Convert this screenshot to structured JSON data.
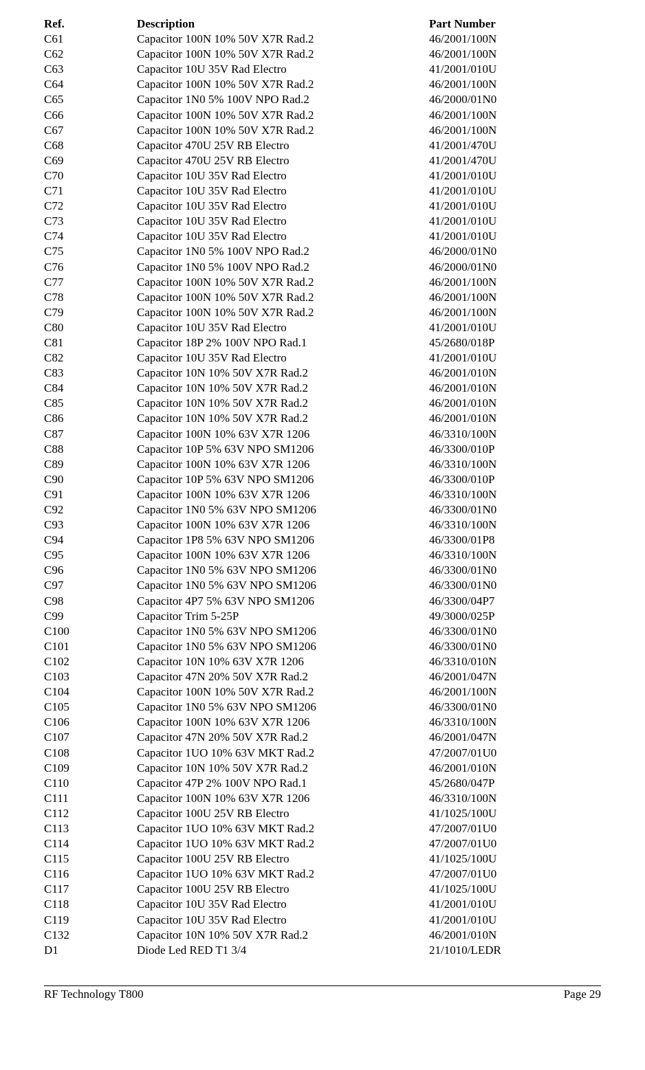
{
  "columns": {
    "ref": "Ref.",
    "desc": "Description",
    "part": "Part Number"
  },
  "rows": [
    {
      "ref": "C61",
      "desc": "Capacitor 100N 10% 50V X7R Rad.2",
      "part": "46/2001/100N"
    },
    {
      "ref": "C62",
      "desc": "Capacitor 100N 10% 50V X7R Rad.2",
      "part": "46/2001/100N"
    },
    {
      "ref": "C63",
      "desc": "Capacitor 10U 35V Rad Electro",
      "part": "41/2001/010U"
    },
    {
      "ref": "C64",
      "desc": "Capacitor 100N 10% 50V X7R Rad.2",
      "part": "46/2001/100N"
    },
    {
      "ref": "C65",
      "desc": "Capacitor 1N0 5% 100V NPO Rad.2",
      "part": "46/2000/01N0"
    },
    {
      "ref": "C66",
      "desc": "Capacitor 100N 10% 50V X7R Rad.2",
      "part": "46/2001/100N"
    },
    {
      "ref": "C67",
      "desc": "Capacitor 100N 10% 50V X7R Rad.2",
      "part": "46/2001/100N"
    },
    {
      "ref": "C68",
      "desc": "Capacitor 470U 25V RB Electro",
      "part": "41/2001/470U"
    },
    {
      "ref": "C69",
      "desc": "Capacitor 470U 25V RB Electro",
      "part": "41/2001/470U"
    },
    {
      "ref": "C70",
      "desc": "Capacitor 10U 35V Rad Electro",
      "part": "41/2001/010U"
    },
    {
      "ref": "C71",
      "desc": "Capacitor 10U 35V Rad Electro",
      "part": "41/2001/010U"
    },
    {
      "ref": "C72",
      "desc": "Capacitor 10U 35V Rad Electro",
      "part": "41/2001/010U"
    },
    {
      "ref": "C73",
      "desc": "Capacitor 10U 35V Rad Electro",
      "part": "41/2001/010U"
    },
    {
      "ref": "C74",
      "desc": "Capacitor 10U 35V Rad Electro",
      "part": "41/2001/010U"
    },
    {
      "ref": "C75",
      "desc": "Capacitor 1N0 5% 100V NPO Rad.2",
      "part": "46/2000/01N0"
    },
    {
      "ref": "C76",
      "desc": "Capacitor 1N0 5% 100V NPO Rad.2",
      "part": "46/2000/01N0"
    },
    {
      "ref": "C77",
      "desc": "Capacitor 100N 10% 50V X7R Rad.2",
      "part": "46/2001/100N"
    },
    {
      "ref": "C78",
      "desc": "Capacitor 100N 10% 50V X7R Rad.2",
      "part": "46/2001/100N"
    },
    {
      "ref": "C79",
      "desc": "Capacitor 100N 10% 50V X7R Rad.2",
      "part": "46/2001/100N"
    },
    {
      "ref": "C80",
      "desc": "Capacitor 10U 35V Rad Electro",
      "part": "41/2001/010U"
    },
    {
      "ref": "C81",
      "desc": "Capacitor 18P 2% 100V NPO Rad.1",
      "part": "45/2680/018P"
    },
    {
      "ref": "C82",
      "desc": "Capacitor 10U 35V Rad Electro",
      "part": "41/2001/010U"
    },
    {
      "ref": "C83",
      "desc": "Capacitor 10N 10% 50V X7R Rad.2",
      "part": "46/2001/010N"
    },
    {
      "ref": "C84",
      "desc": "Capacitor 10N 10% 50V X7R Rad.2",
      "part": "46/2001/010N"
    },
    {
      "ref": "C85",
      "desc": "Capacitor 10N 10% 50V X7R Rad.2",
      "part": "46/2001/010N"
    },
    {
      "ref": "C86",
      "desc": "Capacitor 10N 10% 50V X7R Rad.2",
      "part": "46/2001/010N"
    },
    {
      "ref": "C87",
      "desc": "Capacitor 100N 10% 63V X7R 1206",
      "part": "46/3310/100N"
    },
    {
      "ref": "C88",
      "desc": "Capacitor 10P 5% 63V NPO SM1206",
      "part": "46/3300/010P"
    },
    {
      "ref": "C89",
      "desc": "Capacitor 100N 10% 63V X7R 1206",
      "part": "46/3310/100N"
    },
    {
      "ref": "C90",
      "desc": "Capacitor 10P 5% 63V NPO SM1206",
      "part": "46/3300/010P"
    },
    {
      "ref": "C91",
      "desc": "Capacitor 100N 10% 63V X7R 1206",
      "part": "46/3310/100N"
    },
    {
      "ref": "C92",
      "desc": "Capacitor 1N0 5% 63V NPO SM1206",
      "part": "46/3300/01N0"
    },
    {
      "ref": "C93",
      "desc": "Capacitor 100N 10% 63V X7R 1206",
      "part": "46/3310/100N"
    },
    {
      "ref": "C94",
      "desc": "Capacitor 1P8 5% 63V NPO SM1206",
      "part": "46/3300/01P8"
    },
    {
      "ref": "C95",
      "desc": "Capacitor 100N 10% 63V X7R 1206",
      "part": "46/3310/100N"
    },
    {
      "ref": "C96",
      "desc": "Capacitor 1N0 5% 63V NPO SM1206",
      "part": "46/3300/01N0"
    },
    {
      "ref": "C97",
      "desc": "Capacitor 1N0 5% 63V NPO SM1206",
      "part": "46/3300/01N0"
    },
    {
      "ref": "C98",
      "desc": "Capacitor 4P7 5% 63V NPO SM1206",
      "part": "46/3300/04P7"
    },
    {
      "ref": "C99",
      "desc": "Capacitor Trim 5-25P",
      "part": "49/3000/025P"
    },
    {
      "ref": "C100",
      "desc": "Capacitor 1N0 5% 63V NPO SM1206",
      "part": "46/3300/01N0"
    },
    {
      "ref": "C101",
      "desc": "Capacitor 1N0 5% 63V NPO SM1206",
      "part": "46/3300/01N0"
    },
    {
      "ref": "C102",
      "desc": "Capacitor 10N 10% 63V X7R 1206",
      "part": "46/3310/010N"
    },
    {
      "ref": "C103",
      "desc": "Capacitor 47N 20% 50V X7R Rad.2",
      "part": "46/2001/047N"
    },
    {
      "ref": "C104",
      "desc": "Capacitor 100N 10% 50V X7R Rad.2",
      "part": "46/2001/100N"
    },
    {
      "ref": "C105",
      "desc": "Capacitor 1N0 5% 63V NPO SM1206",
      "part": "46/3300/01N0"
    },
    {
      "ref": "C106",
      "desc": "Capacitor 100N 10% 63V X7R 1206",
      "part": "46/3310/100N"
    },
    {
      "ref": "C107",
      "desc": "Capacitor 47N 20% 50V X7R Rad.2",
      "part": "46/2001/047N"
    },
    {
      "ref": "C108",
      "desc": "Capacitor 1UO 10% 63V MKT Rad.2",
      "part": "47/2007/01U0"
    },
    {
      "ref": "C109",
      "desc": "Capacitor 10N 10% 50V X7R Rad.2",
      "part": "46/2001/010N"
    },
    {
      "ref": "C110",
      "desc": "Capacitor 47P 2% 100V NPO Rad.1",
      "part": "45/2680/047P"
    },
    {
      "ref": "C111",
      "desc": "Capacitor 100N 10% 63V X7R 1206",
      "part": "46/3310/100N"
    },
    {
      "ref": "C112",
      "desc": "Capacitor 100U 25V RB Electro",
      "part": "41/1025/100U"
    },
    {
      "ref": "C113",
      "desc": "Capacitor 1UO 10% 63V MKT Rad.2",
      "part": "47/2007/01U0"
    },
    {
      "ref": "C114",
      "desc": "Capacitor 1UO 10% 63V MKT Rad.2",
      "part": "47/2007/01U0"
    },
    {
      "ref": "C115",
      "desc": "Capacitor 100U 25V RB Electro",
      "part": "41/1025/100U"
    },
    {
      "ref": "C116",
      "desc": "Capacitor 1UO 10% 63V MKT Rad.2",
      "part": "47/2007/01U0"
    },
    {
      "ref": "C117",
      "desc": "Capacitor 100U 25V RB Electro",
      "part": "41/1025/100U"
    },
    {
      "ref": "C118",
      "desc": "Capacitor 10U 35V Rad Electro",
      "part": "41/2001/010U"
    },
    {
      "ref": "C119",
      "desc": "Capacitor 10U 35V Rad Electro",
      "part": "41/2001/010U"
    },
    {
      "ref": "C132",
      "desc": "Capacitor 10N 10% 50V X7R Rad.2",
      "part": "46/2001/010N"
    },
    {
      "ref": "D1",
      "desc": "Diode Led RED T1 3/4",
      "part": "21/1010/LEDR"
    }
  ],
  "footer": {
    "left": "RF Technology  T800",
    "right": "Page 29"
  }
}
